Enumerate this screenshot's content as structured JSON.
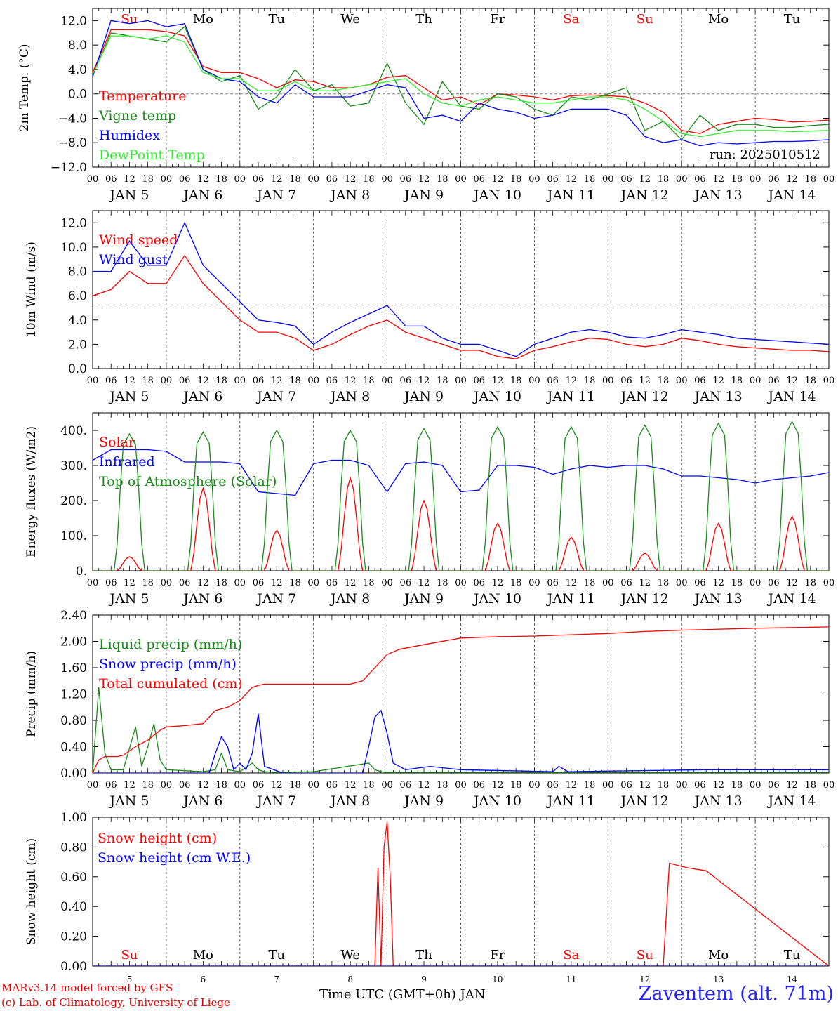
{
  "colors": {
    "red": "#ff0000",
    "green": "#1a8a1a",
    "lightgreen": "#33ee33",
    "blue": "#0000ff",
    "dashed": "#808080"
  },
  "days": {
    "dates": [
      "JAN  5",
      "JAN  6",
      "JAN  7",
      "JAN  8",
      "JAN  9",
      "JAN 10",
      "JAN 11",
      "JAN 12",
      "JAN 13",
      "JAN 14"
    ],
    "weekdays": [
      "Su",
      "Mo",
      "Tu",
      "We",
      "Th",
      "Fr",
      "Sa",
      "Su",
      "Mo",
      "Tu"
    ],
    "weekday_weekend": [
      true,
      false,
      false,
      false,
      false,
      false,
      true,
      true,
      false,
      false
    ],
    "bottom_numbers": [
      "5",
      "6",
      "7",
      "8",
      "9",
      "10",
      "11",
      "12",
      "13",
      "14"
    ],
    "hour_ticks": [
      "00",
      "06",
      "12",
      "18"
    ],
    "final_tick": "00"
  },
  "footer": {
    "credit_line1": "MARv3.14 model forced by GFS",
    "credit_line2": "(c) Lab. of Climatology, University of Liege",
    "x_title": "Time UTC (GMT+0h) JAN",
    "station": "Zaventem (alt. 71m)"
  },
  "chart_data": [
    {
      "type": "line",
      "ylabel": "2m Temp. (°C)",
      "ylim": [
        -12,
        14
      ],
      "yticks": [
        "12.0",
        "8.0",
        "4.0",
        "0.0",
        "−4.0",
        "−8.0",
        "−12.0"
      ],
      "annotation": "run: 2025010512",
      "x_unit": "hours since JAN 5 00 UTC",
      "series": [
        {
          "name": "Temperature",
          "color": "red",
          "x": [
            0,
            6,
            12,
            18,
            24,
            30,
            36,
            42,
            48,
            54,
            60,
            66,
            72,
            78,
            84,
            90,
            96,
            102,
            108,
            114,
            120,
            126,
            132,
            138,
            144,
            150,
            156,
            162,
            168,
            174,
            180,
            186,
            192,
            198,
            204,
            210,
            216,
            222,
            228,
            234,
            240
          ],
          "values": [
            3.5,
            10.5,
            10.5,
            10.5,
            10.2,
            9.5,
            4.5,
            3.5,
            3.5,
            2.5,
            1.0,
            2.3,
            2.0,
            1.0,
            1.0,
            1.5,
            2.7,
            3.0,
            1.0,
            -1.0,
            -0.5,
            -1.8,
            0.0,
            -0.2,
            -0.5,
            -1.0,
            -0.3,
            -0.2,
            -0.3,
            -0.5,
            -1.5,
            -3.0,
            -6.0,
            -6.5,
            -5.0,
            -4.5,
            -4.0,
            -4.2,
            -4.6,
            -4.5,
            -4.3
          ]
        },
        {
          "name": "Vigne temp",
          "color": "green",
          "x": [
            0,
            6,
            12,
            18,
            24,
            30,
            36,
            42,
            48,
            54,
            60,
            66,
            72,
            78,
            84,
            90,
            96,
            102,
            108,
            114,
            120,
            126,
            132,
            138,
            144,
            150,
            156,
            162,
            168,
            174,
            180,
            186,
            192,
            198,
            204,
            210,
            216,
            222,
            228,
            234,
            240
          ],
          "values": [
            3.0,
            10.0,
            9.5,
            9.0,
            8.5,
            11.0,
            4.0,
            2.0,
            3.0,
            -2.5,
            -0.5,
            4.0,
            0.5,
            1.5,
            -2.0,
            -1.5,
            5.0,
            -1.5,
            -5.0,
            2.0,
            -2.0,
            -2.5,
            0.0,
            -0.5,
            -2.5,
            -3.5,
            -0.5,
            -1.0,
            0.0,
            1.0,
            -6.0,
            -4.5,
            -7.5,
            -3.5,
            -6.0,
            -5.0,
            -5.0,
            -5.5,
            -5.5,
            -5.2,
            -5.0
          ]
        },
        {
          "name": "Humidex",
          "color": "blue",
          "x": [
            0,
            6,
            12,
            18,
            24,
            30,
            36,
            42,
            48,
            54,
            60,
            66,
            72,
            78,
            84,
            90,
            96,
            102,
            108,
            114,
            120,
            126,
            132,
            138,
            144,
            150,
            156,
            162,
            168,
            174,
            180,
            186,
            192,
            198,
            204,
            210,
            216,
            222,
            228,
            234,
            240
          ],
          "values": [
            2.8,
            12.0,
            11.5,
            12.0,
            11.0,
            11.5,
            4.0,
            2.5,
            2.0,
            -0.5,
            -1.5,
            1.5,
            -0.5,
            -0.5,
            -0.5,
            0.5,
            1.5,
            1.0,
            -4.0,
            -3.5,
            -4.5,
            -1.5,
            -2.5,
            -3.0,
            -4.0,
            -3.5,
            -2.5,
            -2.5,
            -2.5,
            -3.5,
            -7.0,
            -8.0,
            -7.5,
            -8.5,
            -8.0,
            -8.2,
            -8.0,
            -7.8,
            -7.8,
            -7.7,
            -7.5
          ]
        },
        {
          "name": "DewPoint Temp",
          "color": "lightgreen",
          "x": [
            0,
            6,
            12,
            18,
            24,
            30,
            36,
            42,
            48,
            54,
            60,
            66,
            72,
            78,
            84,
            90,
            96,
            102,
            108,
            114,
            120,
            126,
            132,
            138,
            144,
            150,
            156,
            162,
            168,
            174,
            180,
            186,
            192,
            198,
            204,
            210,
            216,
            222,
            228,
            234,
            240
          ],
          "values": [
            3.2,
            9.5,
            9.5,
            9.0,
            9.5,
            8.5,
            3.5,
            2.5,
            2.5,
            0.5,
            0.5,
            2.0,
            0.5,
            0.5,
            1.0,
            1.5,
            2.0,
            2.5,
            0.0,
            -1.5,
            -2.0,
            -1.0,
            -0.5,
            -1.0,
            -1.5,
            -1.5,
            -1.0,
            -0.5,
            -0.5,
            -1.0,
            -2.5,
            -4.5,
            -6.5,
            -7.0,
            -6.5,
            -6.0,
            -6.0,
            -6.0,
            -6.2,
            -6.1,
            -6.0
          ]
        }
      ]
    },
    {
      "type": "line",
      "ylabel": "10m Wind (m/s)",
      "ylim": [
        0,
        13
      ],
      "yticks": [
        "12.0",
        "10.0",
        "8.0",
        "6.0",
        "4.0",
        "2.0",
        "0.0"
      ],
      "threshold": 5,
      "x_unit": "hours since JAN 5 00 UTC",
      "series": [
        {
          "name": "Wind speed",
          "color": "red",
          "x": [
            0,
            6,
            12,
            18,
            24,
            30,
            36,
            42,
            48,
            54,
            60,
            66,
            72,
            78,
            84,
            90,
            96,
            102,
            108,
            114,
            120,
            126,
            132,
            138,
            144,
            150,
            156,
            162,
            168,
            174,
            180,
            186,
            192,
            198,
            204,
            210,
            216,
            222,
            228,
            234,
            240
          ],
          "values": [
            6.0,
            6.5,
            8.0,
            7.0,
            7.0,
            9.3,
            7.0,
            5.5,
            4.0,
            3.0,
            3.0,
            2.5,
            1.5,
            2.0,
            2.8,
            3.5,
            4.0,
            3.0,
            2.5,
            2.0,
            1.5,
            1.5,
            1.0,
            0.8,
            1.5,
            1.8,
            2.2,
            2.5,
            2.4,
            2.0,
            1.8,
            2.0,
            2.5,
            2.3,
            2.0,
            1.8,
            1.7,
            1.6,
            1.5,
            1.5,
            1.4
          ]
        },
        {
          "name": "Wind gust",
          "color": "blue",
          "x": [
            0,
            6,
            12,
            18,
            24,
            30,
            36,
            42,
            48,
            54,
            60,
            66,
            72,
            78,
            84,
            90,
            96,
            102,
            108,
            114,
            120,
            126,
            132,
            138,
            144,
            150,
            156,
            162,
            168,
            174,
            180,
            186,
            192,
            198,
            204,
            210,
            216,
            222,
            228,
            234,
            240
          ],
          "values": [
            8.0,
            8.0,
            10.5,
            8.5,
            8.5,
            12.0,
            8.5,
            7.0,
            5.5,
            4.0,
            3.8,
            3.5,
            2.0,
            3.0,
            3.8,
            4.5,
            5.2,
            3.5,
            3.5,
            2.5,
            2.0,
            2.0,
            1.5,
            1.0,
            2.0,
            2.5,
            3.0,
            3.2,
            3.0,
            2.6,
            2.5,
            2.8,
            3.2,
            3.0,
            2.8,
            2.5,
            2.4,
            2.3,
            2.2,
            2.1,
            2.0
          ]
        }
      ]
    },
    {
      "type": "line",
      "ylabel": "Energy fluxes (W/m2)",
      "ylim": [
        0,
        450
      ],
      "yticks": [
        "400.",
        "300.",
        "200.",
        "100.",
        "0."
      ],
      "x_unit": "hours since JAN 5 00 UTC",
      "series": [
        {
          "name": "Solar",
          "color": "red",
          "peaks": [
            40,
            235,
            115,
            265,
            200,
            135,
            95,
            50,
            135,
            155
          ]
        },
        {
          "name": "Infrared",
          "color": "blue",
          "x": [
            0,
            6,
            12,
            18,
            24,
            30,
            36,
            42,
            48,
            54,
            60,
            66,
            72,
            78,
            84,
            90,
            96,
            102,
            108,
            114,
            120,
            126,
            132,
            138,
            144,
            150,
            156,
            162,
            168,
            174,
            180,
            186,
            192,
            198,
            204,
            210,
            216,
            222,
            228,
            234,
            240
          ],
          "values": [
            315,
            345,
            345,
            345,
            340,
            310,
            310,
            310,
            305,
            225,
            220,
            215,
            305,
            315,
            315,
            300,
            225,
            305,
            310,
            300,
            225,
            230,
            300,
            300,
            295,
            275,
            290,
            300,
            295,
            300,
            300,
            290,
            270,
            270,
            265,
            260,
            250,
            260,
            265,
            270,
            280
          ]
        },
        {
          "name": "Top of Atmosphere (Solar)",
          "color": "green",
          "peaks": [
            390,
            395,
            400,
            400,
            405,
            410,
            410,
            415,
            420,
            425
          ]
        }
      ]
    },
    {
      "type": "line",
      "ylabel": "Precip (mm/h)",
      "ylim": [
        0,
        2.4
      ],
      "yticks": [
        "2.40",
        "2.00",
        "1.60",
        "1.20",
        "0.80",
        "0.40",
        "0.00"
      ],
      "x_unit": "hours since JAN 5 00 UTC",
      "series": [
        {
          "name": "Liquid precip (mm/h)",
          "color": "green",
          "x": [
            0,
            2,
            4,
            6,
            10,
            14,
            16,
            18,
            20,
            22,
            24,
            36,
            40,
            42,
            44,
            48,
            52,
            54,
            56,
            60,
            72,
            90,
            92,
            94,
            96,
            120,
            240
          ],
          "values": [
            0,
            1.3,
            0.3,
            0.05,
            0.05,
            0.7,
            0.1,
            0.4,
            0.75,
            0.2,
            0.05,
            0.02,
            0.05,
            0.3,
            0.05,
            0.02,
            0.15,
            0.05,
            0.02,
            0.01,
            0.02,
            0.15,
            0.05,
            0.02,
            0.01,
            0.01,
            0.01
          ]
        },
        {
          "name": "Snow precip (mm/h)",
          "color": "blue",
          "x": [
            0,
            38,
            40,
            42,
            44,
            46,
            48,
            50,
            52,
            54,
            56,
            62,
            88,
            90,
            92,
            94,
            96,
            98,
            100,
            102,
            110,
            120,
            150,
            152,
            155,
            200,
            240
          ],
          "values": [
            0,
            0,
            0.3,
            0.55,
            0.4,
            0.05,
            0.15,
            0.05,
            0.3,
            0.9,
            0.1,
            0.0,
            0,
            0.4,
            0.85,
            0.95,
            0.6,
            0.15,
            0.1,
            0.05,
            0.1,
            0.05,
            0.02,
            0.1,
            0.02,
            0.05,
            0.05
          ]
        },
        {
          "name": "Total cumulated (cm)",
          "color": "red",
          "x": [
            0,
            2,
            4,
            8,
            10,
            14,
            18,
            22,
            24,
            30,
            36,
            40,
            44,
            48,
            52,
            54,
            56,
            60,
            72,
            84,
            88,
            96,
            100,
            108,
            120,
            132,
            144,
            156,
            168,
            180,
            192,
            216,
            240
          ],
          "values": [
            0,
            0.2,
            0.25,
            0.25,
            0.27,
            0.4,
            0.5,
            0.65,
            0.7,
            0.72,
            0.75,
            0.95,
            1.0,
            1.1,
            1.3,
            1.33,
            1.35,
            1.35,
            1.35,
            1.35,
            1.4,
            1.8,
            1.88,
            1.95,
            2.05,
            2.07,
            2.08,
            2.1,
            2.12,
            2.15,
            2.17,
            2.2,
            2.22
          ]
        }
      ]
    },
    {
      "type": "line",
      "ylabel": "Snow height (cm)",
      "ylim": [
        0,
        1.0
      ],
      "yticks": [
        "1.00",
        "0.80",
        "0.60",
        "0.40",
        "0.20",
        "0.00"
      ],
      "x_unit": "hours since JAN 5 00 UTC",
      "series": [
        {
          "name": "Snow height (cm)",
          "color": "red",
          "x": [
            0,
            92,
            93,
            94,
            95,
            96,
            97,
            98,
            99,
            100,
            101,
            102,
            170,
            186,
            188,
            190,
            192,
            194,
            200,
            240
          ],
          "values": [
            0,
            0,
            0.66,
            0,
            0.8,
            0.97,
            0.6,
            0,
            0,
            0,
            0,
            0,
            0,
            0,
            0.69,
            0.68,
            0.67,
            0.66,
            0.64,
            0
          ]
        },
        {
          "name": "Snow height (cm W.E.)",
          "color": "blue",
          "x": [
            0,
            240
          ],
          "values": [
            0,
            0
          ]
        }
      ]
    }
  ]
}
